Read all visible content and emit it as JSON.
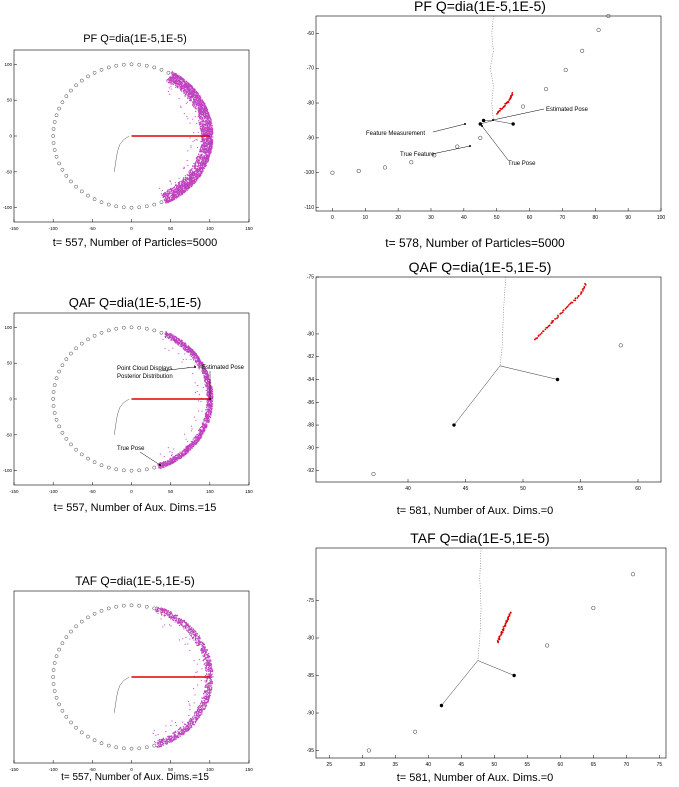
{
  "chart_data": [
    {
      "id": "p1",
      "type": "scatter",
      "title": "PF Q=dia(1E-5,1E-5)",
      "caption": "t= 557, Number of Particles=5000",
      "xlim": [
        -150,
        150
      ],
      "ylim": [
        -120,
        120
      ],
      "xticks": [
        -150,
        -100,
        -50,
        0,
        50,
        100,
        150
      ],
      "yticks": [
        -100,
        -50,
        0,
        50,
        100
      ],
      "landmarks": {
        "shape": "circle",
        "center": [
          0,
          0
        ],
        "radius": 100,
        "count": 64
      },
      "particles": {
        "color": "#c040c0",
        "arc_center": [
          0,
          0
        ],
        "radius_range": [
          88,
          104
        ],
        "angle_deg": [
          -65,
          60
        ]
      },
      "heading_line": {
        "from": [
          0,
          0
        ],
        "to": [
          100,
          0
        ],
        "color": "#dd0000"
      },
      "trajectory": [
        [
          -3,
          0
        ],
        [
          -10,
          -5
        ],
        [
          -15,
          -12
        ],
        [
          -18,
          -22
        ],
        [
          -20,
          -35
        ],
        [
          -22,
          -50
        ]
      ],
      "annotations": []
    },
    {
      "id": "p2",
      "type": "scatter",
      "title": "PF Q=dia(1E-5,1E-5)",
      "caption": "t= 578, Number of Particles=5000",
      "xlim": [
        -5,
        100
      ],
      "ylim": [
        -111,
        -55
      ],
      "xticks": [
        0,
        10,
        20,
        30,
        40,
        50,
        60,
        70,
        80,
        90,
        100
      ],
      "yticks": [
        -60,
        -70,
        -80,
        -90,
        -100,
        -110
      ],
      "landmarks": {
        "points": [
          [
            0,
            -100
          ],
          [
            8,
            -99.5
          ],
          [
            16,
            -98.5
          ],
          [
            24,
            -97
          ],
          [
            31,
            -95
          ],
          [
            38,
            -92.5
          ],
          [
            45,
            -90
          ],
          [
            58,
            -81
          ],
          [
            65,
            -76
          ],
          [
            71,
            -70.5
          ],
          [
            76,
            -65
          ],
          [
            81,
            -59
          ],
          [
            84,
            -55
          ]
        ]
      },
      "particles": {
        "color": "#dd0000",
        "arc": [
          [
            50,
            -83
          ],
          [
            52,
            -81
          ],
          [
            54,
            -79
          ],
          [
            55,
            -77
          ]
        ]
      },
      "trajectory": [
        [
          49,
          -55
        ],
        [
          48.5,
          -60
        ],
        [
          49,
          -65
        ],
        [
          48,
          -70
        ],
        [
          49,
          -75
        ],
        [
          48.5,
          -80
        ],
        [
          49,
          -85
        ]
      ],
      "features": [
        [
          46,
          -85
        ],
        [
          45,
          -86
        ],
        [
          55,
          -86
        ]
      ],
      "annotations": [
        {
          "text": "Estimated Pose"
        },
        {
          "text": "Feature Measurement"
        },
        {
          "text": "True Pose"
        },
        {
          "text": "True Feature"
        }
      ]
    },
    {
      "id": "p3",
      "type": "scatter",
      "title": "QAF Q=dia(1E-5,1E-5)",
      "caption": "t= 557, Number of Aux. Dims.=15",
      "xlim": [
        -150,
        150
      ],
      "ylim": [
        -120,
        120
      ],
      "xticks": [
        -150,
        -100,
        -50,
        0,
        50,
        100,
        150
      ],
      "yticks": [
        -100,
        -50,
        0,
        50,
        100
      ],
      "landmarks": {
        "shape": "circle",
        "center": [
          0,
          0
        ],
        "radius": 100,
        "count": 64
      },
      "particles": {
        "color": "#c040c0",
        "arc_center": [
          0,
          0
        ],
        "radius_range": [
          96,
          104
        ],
        "angle_deg": [
          -70,
          65
        ]
      },
      "heading_line": {
        "from": [
          0,
          0
        ],
        "to": [
          100,
          0
        ],
        "color": "#dd0000"
      },
      "trajectory": [
        [
          -3,
          0
        ],
        [
          -10,
          -5
        ],
        [
          -15,
          -12
        ],
        [
          -18,
          -22
        ],
        [
          -20,
          -35
        ],
        [
          -22,
          -50
        ]
      ],
      "annotations": [
        {
          "text": "Point Cloud Displays"
        },
        {
          "text": "Posterior Distribution"
        },
        {
          "text": "Estimated Pose"
        },
        {
          "text": "True Pose"
        }
      ]
    },
    {
      "id": "p4",
      "type": "scatter",
      "title": "QAF Q=dia(1E-5,1E-5)",
      "caption": "t= 581, Number of Aux. Dims.=0",
      "xlim": [
        32,
        62
      ],
      "ylim": [
        -93,
        -75
      ],
      "xticks": [
        40,
        45,
        50,
        55,
        60
      ],
      "yticks": [
        -75,
        -80,
        -82,
        -84,
        -86,
        -88,
        -90,
        -92
      ],
      "landmarks": {
        "points": [
          [
            37,
            -92.3
          ],
          [
            58.5,
            -81
          ]
        ]
      },
      "particles": {
        "color": "#dd0000",
        "arc": [
          [
            51,
            -80.5
          ],
          [
            52,
            -79.5
          ],
          [
            53,
            -78.5
          ],
          [
            54,
            -77.5
          ],
          [
            55,
            -76.5
          ],
          [
            55.5,
            -75.5
          ]
        ]
      },
      "trajectory": [
        [
          48.5,
          -75
        ],
        [
          48.3,
          -78
        ],
        [
          48.2,
          -81
        ],
        [
          48,
          -82.8
        ]
      ],
      "features": [
        [
          44,
          -88
        ],
        [
          53,
          -84
        ]
      ],
      "annotations": []
    },
    {
      "id": "p5",
      "type": "scatter",
      "title": "TAF Q=dia(1E-5,1E-5)",
      "caption": "t= 557, Number of Aux. Dims.=15",
      "xlim": [
        -150,
        150
      ],
      "ylim": [
        -120,
        120
      ],
      "xticks": [
        -150,
        -100,
        -50,
        0,
        50,
        100,
        150
      ],
      "yticks": [],
      "landmarks": {
        "shape": "circle",
        "center": [
          0,
          0
        ],
        "radius": 100,
        "count": 64
      },
      "particles": {
        "color": "#c040c0",
        "arc_center": [
          0,
          0
        ],
        "radius_range": [
          94,
          104
        ],
        "angle_deg": [
          -72,
          72
        ]
      },
      "heading_line": {
        "from": [
          0,
          0
        ],
        "to": [
          100,
          0
        ],
        "color": "#dd0000"
      },
      "trajectory": [
        [
          -3,
          0
        ],
        [
          -10,
          -5
        ],
        [
          -15,
          -12
        ],
        [
          -18,
          -22
        ],
        [
          -20,
          -35
        ],
        [
          -22,
          -50
        ]
      ],
      "annotations": []
    },
    {
      "id": "p6",
      "type": "scatter",
      "title": "TAF Q=dia(1E-5,1E-5)",
      "caption": "t= 581, Number of Aux. Dims.=0",
      "xlim": [
        23,
        76
      ],
      "ylim": [
        -96,
        -68
      ],
      "xticks": [
        25,
        30,
        35,
        40,
        45,
        50,
        55,
        60,
        65,
        70,
        75
      ],
      "yticks": [
        -75,
        -80,
        -85,
        -90,
        -95
      ],
      "landmarks": {
        "points": [
          [
            31,
            -95
          ],
          [
            38,
            -92.5
          ],
          [
            58,
            -81
          ],
          [
            65,
            -76
          ],
          [
            71,
            -71.5
          ]
        ]
      },
      "particles": {
        "color": "#dd0000",
        "arc": [
          [
            50.5,
            -80.5
          ],
          [
            51,
            -79.5
          ],
          [
            51.5,
            -78.5
          ],
          [
            52,
            -77.5
          ],
          [
            52.5,
            -76.5
          ]
        ]
      },
      "trajectory": [
        [
          48,
          -68
        ],
        [
          47.8,
          -72
        ],
        [
          48,
          -76
        ],
        [
          47.8,
          -80
        ],
        [
          47.5,
          -83
        ]
      ],
      "features": [
        [
          42,
          -89
        ],
        [
          53,
          -85
        ]
      ],
      "annotations": []
    }
  ]
}
